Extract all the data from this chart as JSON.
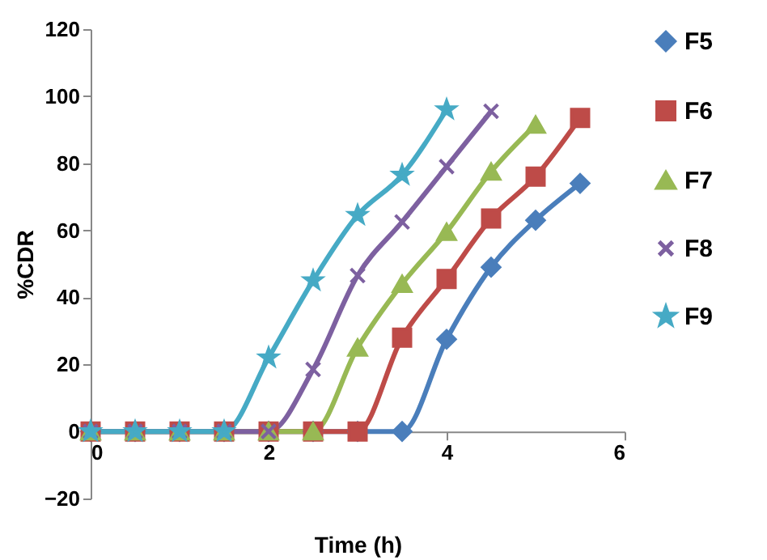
{
  "chart_data": {
    "type": "line",
    "xlabel": "Time (h)",
    "ylabel": "%CDR",
    "x": [
      0,
      0.5,
      1,
      1.5,
      2,
      2.5,
      3,
      3.5,
      4,
      4.5,
      5,
      5.5
    ],
    "series": [
      {
        "name": "F5",
        "color": "#4a7ebb",
        "marker": "diamond",
        "values": [
          0,
          0,
          0,
          0,
          0,
          0,
          0,
          0,
          27.5,
          49,
          63,
          74
        ]
      },
      {
        "name": "F6",
        "color": "#be4b48",
        "marker": "square",
        "values": [
          0,
          0,
          0,
          0,
          0,
          0,
          0,
          28,
          45.5,
          63.5,
          76,
          93.5
        ]
      },
      {
        "name": "F7",
        "color": "#98b954",
        "marker": "triangle",
        "values": [
          0,
          0,
          0,
          0,
          0,
          0,
          25,
          44,
          59.5,
          77.5,
          91.5,
          null
        ]
      },
      {
        "name": "F8",
        "color": "#7d60a0",
        "marker": "cross",
        "values": [
          0,
          0,
          0,
          0,
          0,
          18.5,
          46.5,
          62.5,
          79,
          95.5,
          null,
          null
        ]
      },
      {
        "name": "F9",
        "color": "#46aac5",
        "marker": "star",
        "values": [
          0,
          0,
          0,
          0,
          22,
          45,
          64.5,
          76.5,
          96,
          null,
          null,
          null
        ]
      }
    ],
    "xlim": [
      0,
      6
    ],
    "xticks": [
      0,
      2,
      4,
      6
    ],
    "ylim": [
      -20,
      120
    ],
    "yticks": [
      -20,
      0,
      20,
      40,
      60,
      80,
      100,
      120
    ],
    "grid": false,
    "legend": "right",
    "line_style": "solid"
  }
}
